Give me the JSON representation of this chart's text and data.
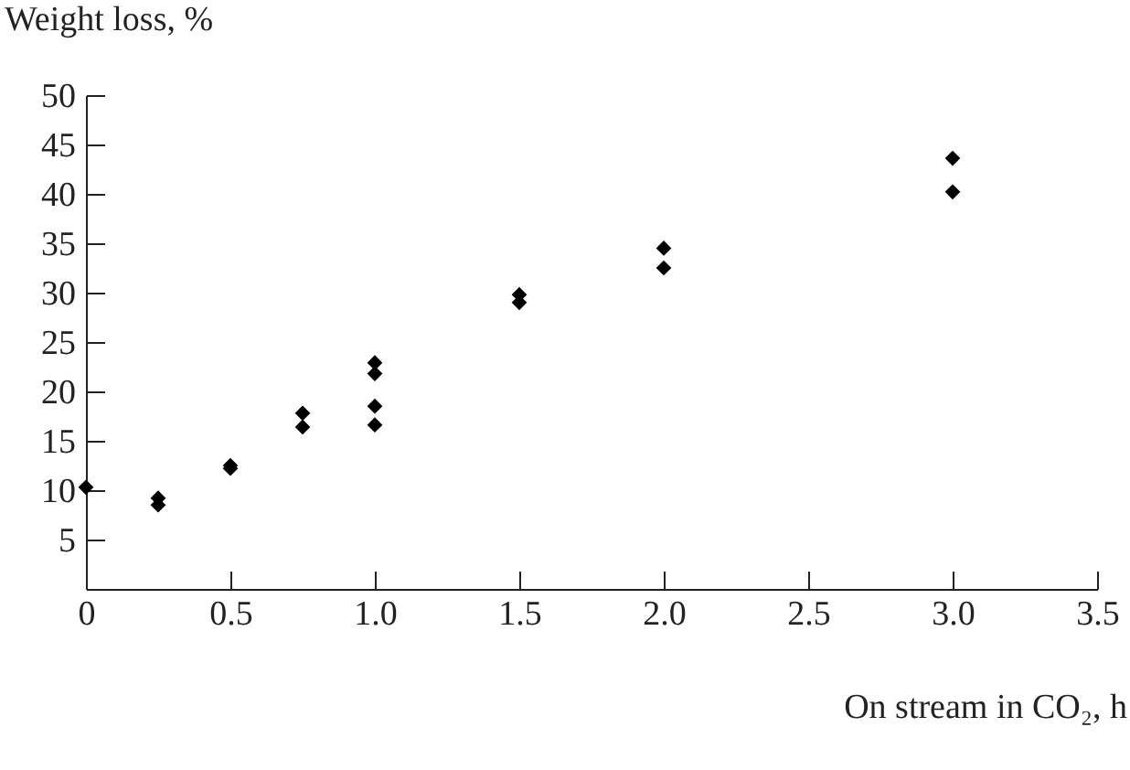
{
  "chart_data": {
    "type": "scatter",
    "xlabel": "On stream in CO₂, h",
    "ylabel": "Weight loss, %",
    "x": [
      0,
      0.25,
      0.25,
      0.5,
      0.5,
      0.75,
      0.75,
      1.0,
      1.0,
      1.0,
      1.0,
      1.5,
      1.5,
      2.0,
      2.0,
      3.0,
      3.0
    ],
    "series": [
      {
        "color": "#000000",
        "values": [
          10.3,
          9.2,
          8.5,
          12.5,
          12.2,
          17.8,
          16.4,
          22.9,
          21.8,
          18.5,
          16.6,
          29.8,
          29.0,
          34.5,
          32.5,
          43.6,
          40.2
        ]
      }
    ],
    "marker": "diamond",
    "grid": false,
    "xlim": [
      0,
      3.5
    ],
    "xticks": [
      0,
      0.5,
      {
        "value": 1,
        "label": "1.0"
      },
      1.5,
      {
        "value": 2,
        "label": "2.0"
      },
      2.5,
      {
        "value": 3,
        "label": "3.0"
      },
      3.5
    ],
    "ylim": [
      0,
      50
    ],
    "yticks": [
      5,
      10,
      15,
      20,
      25,
      30,
      35,
      40,
      45,
      50
    ]
  }
}
